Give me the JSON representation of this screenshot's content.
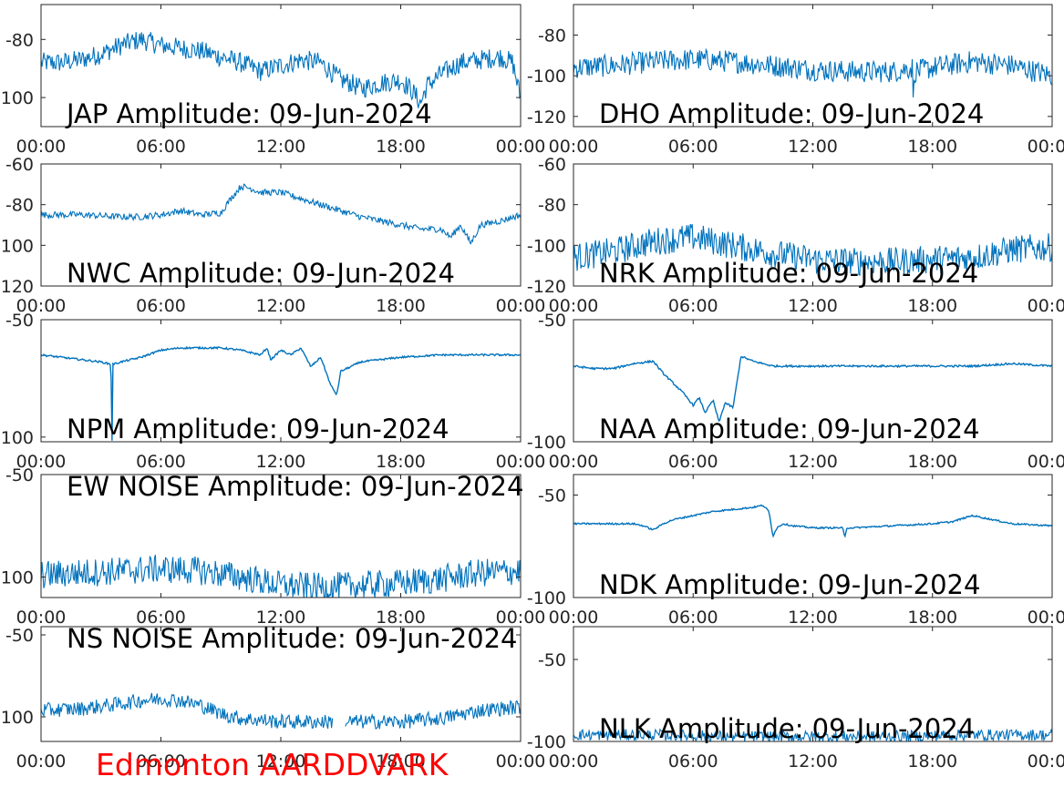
{
  "footer": "Edmonton AARDDVARK",
  "colors": {
    "line": "#0072BD",
    "footer": "#ff0000",
    "axes": "#262626"
  },
  "xticks": [
    "00:00",
    "06:00",
    "12:00",
    "18:00",
    "00:00"
  ],
  "chart_data": [
    {
      "type": "line",
      "title": "JAP Amplitude: 09-Jun-2024",
      "xlim": [
        0,
        24
      ],
      "ylim": [
        -110,
        -68
      ],
      "yticks": [
        {
          "v": -80,
          "l": "-80"
        },
        {
          "v": -100,
          "l": "100"
        }
      ],
      "noise": 3.5,
      "x": [
        0,
        1,
        2,
        3,
        4,
        5,
        6,
        7,
        8,
        9,
        10,
        11,
        12,
        13,
        14,
        14.5,
        15,
        15.5,
        16,
        17,
        18,
        18.5,
        19,
        19.3,
        20,
        21,
        22,
        23,
        23.6,
        24
      ],
      "y": [
        -88,
        -88,
        -87,
        -85,
        -82,
        -80,
        -82,
        -83,
        -84,
        -86,
        -88,
        -91,
        -89,
        -87,
        -88,
        -91,
        -94,
        -95,
        -97,
        -95,
        -94,
        -97,
        -102,
        -96,
        -92,
        -88,
        -87,
        -86,
        -88,
        -100
      ]
    },
    {
      "type": "line",
      "title": "DHO Amplitude: 09-Jun-2024",
      "xlim": [
        0,
        24
      ],
      "ylim": [
        -125,
        -65
      ],
      "yticks": [
        {
          "v": -80,
          "l": "-80"
        },
        {
          "v": -100,
          "l": "-100"
        },
        {
          "v": -120,
          "l": "-120"
        }
      ],
      "noise": 5.5,
      "x": [
        0,
        2,
        4,
        6,
        8,
        10,
        12,
        14,
        16,
        17.0,
        17.05,
        17.1,
        18,
        20,
        22,
        24
      ],
      "y": [
        -96,
        -95,
        -93,
        -92,
        -93,
        -95,
        -97,
        -98,
        -98,
        -96,
        -115,
        -98,
        -96,
        -93,
        -95,
        -100
      ]
    },
    {
      "type": "line",
      "title": "NWC Amplitude: 09-Jun-2024",
      "xlim": [
        0,
        24
      ],
      "ylim": [
        -120,
        -60
      ],
      "yticks": [
        {
          "v": -60,
          "l": "-60"
        },
        {
          "v": -80,
          "l": "-80"
        },
        {
          "v": -100,
          "l": "100"
        },
        {
          "v": -120,
          "l": "120"
        }
      ],
      "noise": 1.6,
      "x": [
        0,
        2,
        4,
        5,
        6,
        7,
        8,
        9,
        9.5,
        10,
        10.5,
        11,
        12,
        13,
        14,
        16,
        18,
        19,
        20,
        20.5,
        21,
        21.5,
        22,
        23,
        24
      ],
      "y": [
        -85,
        -85,
        -86,
        -86,
        -85,
        -83,
        -85,
        -84,
        -77,
        -71,
        -72,
        -74,
        -74,
        -77,
        -80,
        -86,
        -90,
        -92,
        -92,
        -96,
        -90,
        -99,
        -90,
        -88,
        -85
      ]
    },
    {
      "type": "line",
      "title": "NRK Amplitude: 09-Jun-2024",
      "xlim": [
        0,
        24
      ],
      "ylim": [
        -120,
        -60
      ],
      "yticks": [
        {
          "v": -60,
          "l": "-60"
        },
        {
          "v": -80,
          "l": "-80"
        },
        {
          "v": -100,
          "l": "-100"
        },
        {
          "v": -120,
          "l": "-120"
        }
      ],
      "noise": 7,
      "x": [
        0,
        2,
        4,
        6,
        8,
        10,
        12,
        14,
        16,
        18,
        20,
        22,
        24
      ],
      "y": [
        -106,
        -103,
        -98,
        -96,
        -100,
        -104,
        -107,
        -108,
        -108,
        -107,
        -106,
        -102,
        -101
      ]
    },
    {
      "type": "line",
      "title": "NPM Amplitude: 09-Jun-2024",
      "xlim": [
        0,
        24
      ],
      "ylim": [
        -102,
        -50
      ],
      "yticks": [
        {
          "v": -50,
          "l": "-50"
        },
        {
          "v": -100,
          "l": "100"
        }
      ],
      "noise": 0.4,
      "x": [
        0,
        1,
        2,
        3,
        3.5,
        3.55,
        3.6,
        4,
        5,
        6,
        7,
        8,
        9,
        10,
        11,
        11.3,
        11.5,
        12,
        12.5,
        13,
        13.5,
        14,
        14.5,
        14.8,
        15,
        15.5,
        16,
        18,
        20,
        22,
        24
      ],
      "y": [
        -65,
        -66,
        -67,
        -68,
        -69,
        -104,
        -69,
        -68,
        -66,
        -63,
        -62,
        -62,
        -62,
        -63,
        -65,
        -62,
        -67,
        -63,
        -65,
        -62,
        -70,
        -66,
        -78,
        -82,
        -72,
        -70,
        -68,
        -66,
        -65,
        -65,
        -65
      ]
    },
    {
      "type": "line",
      "title": "NAA Amplitude: 09-Jun-2024",
      "xlim": [
        0,
        24
      ],
      "ylim": [
        -100,
        -50
      ],
      "yticks": [
        {
          "v": -50,
          "l": "-50"
        },
        {
          "v": -100,
          "l": "-100"
        }
      ],
      "noise": 0.4,
      "x": [
        0,
        1,
        2,
        3,
        4,
        4.5,
        5,
        5.5,
        6,
        6.3,
        6.6,
        7,
        7.3,
        7.6,
        8,
        8.4,
        9,
        10,
        12,
        14,
        16,
        18,
        20,
        22,
        24
      ],
      "y": [
        -69,
        -70,
        -70,
        -68,
        -67,
        -72,
        -76,
        -80,
        -85,
        -82,
        -88,
        -83,
        -92,
        -84,
        -86,
        -65,
        -67,
        -69,
        -69,
        -69,
        -69,
        -69,
        -69,
        -68,
        -69
      ]
    },
    {
      "type": "line",
      "title": "EW NOISE Amplitude: 09-Jun-2024",
      "xlim": [
        0,
        24
      ],
      "ylim": [
        -110,
        -50
      ],
      "yticks": [
        {
          "v": -50,
          "l": "-50"
        },
        {
          "v": -100,
          "l": "100"
        }
      ],
      "noise": 7,
      "x": [
        0,
        2,
        4,
        6,
        8,
        10,
        12,
        14,
        16,
        18,
        20,
        22,
        24
      ],
      "y": [
        -99,
        -98,
        -97,
        -96,
        -97,
        -100,
        -104,
        -105,
        -104,
        -103,
        -101,
        -98,
        -97
      ]
    },
    {
      "type": "line",
      "title": "NDK Amplitude: 09-Jun-2024",
      "xlim": [
        0,
        24
      ],
      "ylim": [
        -100,
        -40
      ],
      "yticks": [
        {
          "v": -50,
          "l": "-50"
        },
        {
          "v": -100,
          "l": "-100"
        }
      ],
      "noise": 0.4,
      "x": [
        0,
        1,
        2,
        3,
        3.5,
        4,
        4.5,
        5,
        6,
        7,
        8,
        9,
        9.5,
        9.8,
        10,
        10.2,
        10.5,
        11,
        12,
        13,
        13.5,
        13.6,
        13.7,
        14,
        16,
        18,
        19,
        20,
        21,
        22,
        24
      ],
      "y": [
        -64,
        -64,
        -64,
        -64,
        -65,
        -67,
        -64,
        -62,
        -60,
        -58,
        -57,
        -56,
        -55,
        -58,
        -70,
        -66,
        -64,
        -65,
        -66,
        -66,
        -66,
        -71,
        -66,
        -66,
        -65,
        -64,
        -63,
        -60,
        -62,
        -64,
        -65
      ]
    },
    {
      "type": "line",
      "title": "NS NOISE Amplitude: 09-Jun-2024",
      "xlim": [
        0,
        24
      ],
      "ylim": [
        -115,
        -45
      ],
      "yticks": [
        {
          "v": -50,
          "l": "-50"
        },
        {
          "v": -100,
          "l": "100"
        }
      ],
      "noise": 4.5,
      "x": [
        0,
        2,
        4,
        5,
        6,
        7,
        8,
        9,
        10,
        12,
        14,
        16,
        18,
        20,
        22,
        24
      ],
      "y": [
        -96,
        -95,
        -92,
        -90,
        -89,
        -90,
        -93,
        -98,
        -101,
        -103,
        -103,
        -103,
        -103,
        -101,
        -96,
        -94
      ],
      "gap": [
        14.6,
        15.2
      ]
    },
    {
      "type": "line",
      "title": "NLK Amplitude: 09-Jun-2024",
      "xlim": [
        0,
        24
      ],
      "ylim": [
        -100,
        -30
      ],
      "yticks": [
        {
          "v": -50,
          "l": "-50"
        },
        {
          "v": -100,
          "l": "-100"
        }
      ],
      "noise": 3.5,
      "x": [
        0,
        4,
        8,
        12,
        16,
        20,
        24
      ],
      "y": [
        -96,
        -96,
        -97,
        -97,
        -97,
        -96,
        -96
      ]
    }
  ]
}
